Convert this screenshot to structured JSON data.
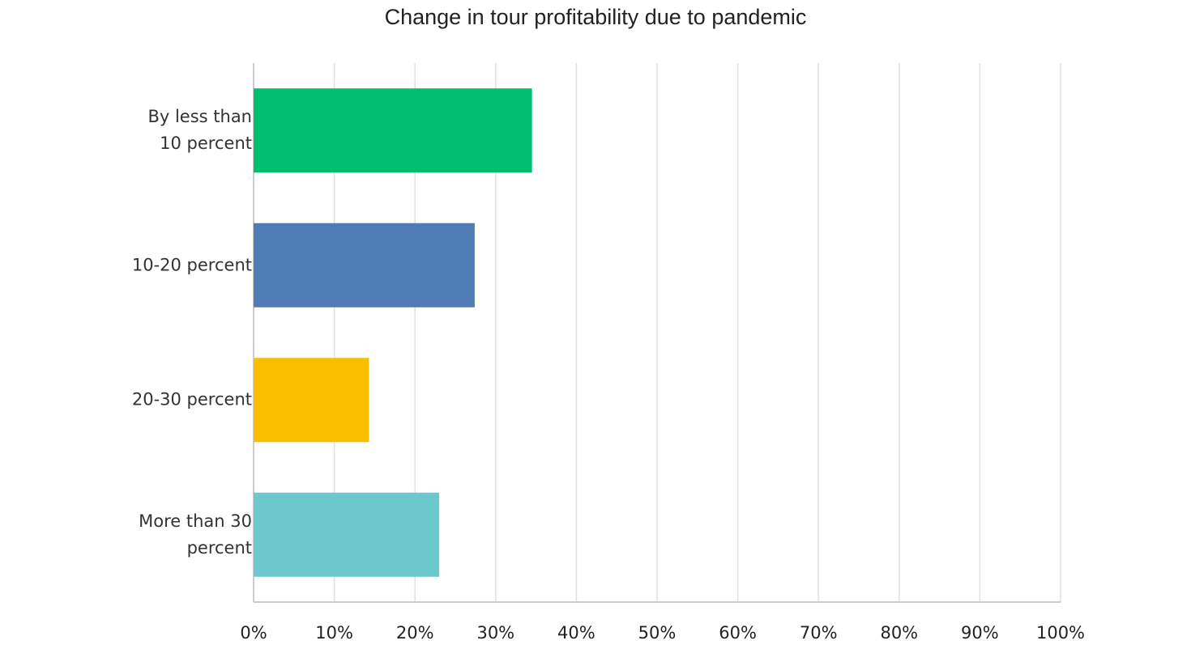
{
  "chart_data": {
    "type": "hbar",
    "title": "Change in tour profitability due to pandemic",
    "categories": [
      "By less than 10 percent",
      "10-20 percent",
      "20-30 percent",
      "More than 30 percent"
    ],
    "values": [
      34.5,
      27.4,
      14.3,
      23.0
    ],
    "colors": [
      "#00bf6f",
      "#507cb6",
      "#f9be00",
      "#6bc8cd"
    ],
    "xlim": [
      0,
      100
    ],
    "xticks": [
      {
        "value": 0,
        "label": "0%"
      },
      {
        "value": 10,
        "label": "10%"
      },
      {
        "value": 20,
        "label": "20%"
      },
      {
        "value": 30,
        "label": "30%"
      },
      {
        "value": 40,
        "label": "40%"
      },
      {
        "value": 50,
        "label": "50%"
      },
      {
        "value": 60,
        "label": "60%"
      },
      {
        "value": 70,
        "label": "70%"
      },
      {
        "value": 80,
        "label": "80%"
      },
      {
        "value": 90,
        "label": "90%"
      },
      {
        "value": 100,
        "label": "100%"
      }
    ],
    "grid": true
  }
}
